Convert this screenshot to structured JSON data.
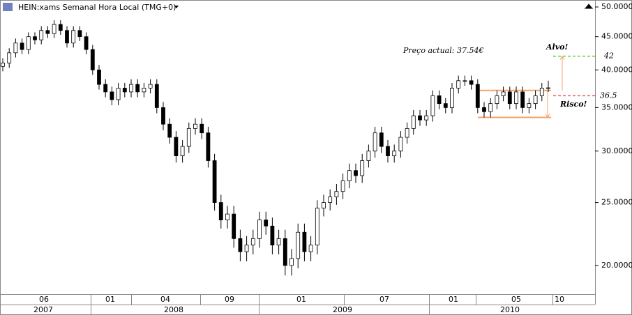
{
  "chart_data": {
    "type": "candlestick",
    "title": "HEIN:xams Semanal Hora Local (TMG+0)",
    "log_scale": true,
    "ylim": [
      18.07,
      51.25
    ],
    "yticks": [
      {
        "value": 20,
        "label": "20.0000"
      },
      {
        "value": 25,
        "label": "25.0000"
      },
      {
        "value": 30,
        "label": "30.0000"
      },
      {
        "value": 35,
        "label": "35.0000"
      },
      {
        "value": 40,
        "label": "40.0000"
      },
      {
        "value": 45,
        "label": "45.0000"
      },
      {
        "value": 50,
        "label": "50.0000"
      }
    ],
    "months": [
      "06",
      "01",
      "04",
      "09",
      "01",
      "07",
      "01",
      "05",
      "10"
    ],
    "years": [
      "2007",
      "2008",
      "2009",
      "2010"
    ],
    "up_color": "#ffffff",
    "down_color": "#000000",
    "candles": [
      [
        40.5,
        41.7,
        39.8,
        41
      ],
      [
        41,
        43.2,
        40.3,
        42.5
      ],
      [
        42.5,
        44.7,
        41.8,
        44
      ],
      [
        44,
        44.7,
        42.3,
        43
      ],
      [
        43,
        45.7,
        42.3,
        45
      ],
      [
        45,
        45.7,
        43.8,
        44.5
      ],
      [
        44.5,
        46.7,
        43.8,
        46
      ],
      [
        46,
        46.7,
        44.8,
        45.5
      ],
      [
        45.5,
        47.7,
        44.8,
        47
      ],
      [
        47,
        47.7,
        45.3,
        46
      ],
      [
        46,
        46.7,
        43.3,
        44
      ],
      [
        44,
        46.7,
        43.3,
        46
      ],
      [
        46,
        46.7,
        44.3,
        45
      ],
      [
        45,
        45.7,
        42.3,
        43
      ],
      [
        43,
        43.7,
        39.3,
        40
      ],
      [
        40,
        40.7,
        37.3,
        38
      ],
      [
        38,
        38.7,
        36.3,
        37
      ],
      [
        37,
        37.7,
        35.3,
        36
      ],
      [
        36,
        38.2,
        35.3,
        37.5
      ],
      [
        37.5,
        38.2,
        36.3,
        37
      ],
      [
        37,
        38.7,
        36.3,
        38
      ],
      [
        38,
        38.7,
        36.3,
        37
      ],
      [
        37,
        38.2,
        36.3,
        37.5
      ],
      [
        37.5,
        38.7,
        36.8,
        38
      ],
      [
        38,
        38.7,
        34.3,
        35
      ],
      [
        35,
        35.7,
        32.3,
        33
      ],
      [
        33,
        33.7,
        30.8,
        31.5
      ],
      [
        31.5,
        32.2,
        28.8,
        29.5
      ],
      [
        29.5,
        31.2,
        28.8,
        30.5
      ],
      [
        30.5,
        33.2,
        29.8,
        32.5
      ],
      [
        32.5,
        33.7,
        31.8,
        33
      ],
      [
        33,
        33.7,
        31.3,
        32
      ],
      [
        32,
        32.7,
        28.3,
        29
      ],
      [
        29,
        29.7,
        24.3,
        25
      ],
      [
        25,
        25.7,
        22.8,
        23.5
      ],
      [
        23.5,
        24.7,
        22.8,
        24
      ],
      [
        24,
        24.7,
        21.3,
        22
      ],
      [
        22,
        22.7,
        20.3,
        21
      ],
      [
        21,
        22.2,
        20.3,
        21.5
      ],
      [
        21.5,
        22.7,
        20.8,
        22
      ],
      [
        22,
        24.2,
        21.3,
        23.5
      ],
      [
        23.5,
        24.2,
        22.3,
        23
      ],
      [
        23,
        23.7,
        20.8,
        21.5
      ],
      [
        21.5,
        22.7,
        20.8,
        22
      ],
      [
        22,
        22.7,
        19.3,
        20
      ],
      [
        20,
        21.2,
        19.3,
        20.5
      ],
      [
        20.5,
        23.2,
        19.8,
        22.5
      ],
      [
        22.5,
        23.2,
        20.3,
        21
      ],
      [
        21,
        22.2,
        20.3,
        21.5
      ],
      [
        21.5,
        25.2,
        20.8,
        24.5
      ],
      [
        24.5,
        25.7,
        23.8,
        25
      ],
      [
        25,
        26.2,
        24.3,
        25.5
      ],
      [
        25.5,
        26.7,
        24.8,
        26
      ],
      [
        26,
        27.7,
        25.3,
        27
      ],
      [
        27,
        28.7,
        26.3,
        28
      ],
      [
        28,
        28.7,
        26.8,
        27.5
      ],
      [
        27.5,
        29.7,
        26.8,
        29
      ],
      [
        29,
        30.7,
        28.3,
        30
      ],
      [
        30,
        32.7,
        29.3,
        32
      ],
      [
        32,
        32.7,
        29.8,
        30.5
      ],
      [
        30.5,
        31.2,
        28.8,
        29.5
      ],
      [
        29.5,
        30.7,
        28.8,
        30
      ],
      [
        30,
        32.2,
        29.3,
        31.5
      ],
      [
        31.5,
        33.2,
        30.8,
        32.5
      ],
      [
        32.5,
        34.7,
        31.8,
        34
      ],
      [
        34,
        34.7,
        32.8,
        33.5
      ],
      [
        33.5,
        34.7,
        32.8,
        34
      ],
      [
        34,
        37.2,
        33.3,
        36.5
      ],
      [
        36.5,
        37.2,
        34.8,
        35.5
      ],
      [
        35.5,
        36.2,
        34.3,
        35
      ],
      [
        35,
        38.2,
        34.3,
        37.5
      ],
      [
        37.5,
        39.2,
        36.8,
        38.5
      ],
      [
        38.5,
        39.2,
        37.8,
        38.5
      ],
      [
        38.5,
        39.2,
        37.3,
        38
      ],
      [
        38,
        38.7,
        34.3,
        35
      ],
      [
        35,
        35.7,
        33.8,
        34.5
      ],
      [
        34.5,
        36.2,
        33.8,
        35.5
      ],
      [
        35.5,
        37.2,
        34.8,
        36.5
      ],
      [
        36.5,
        37.7,
        35.8,
        37
      ],
      [
        37,
        37.7,
        34.8,
        35.5
      ],
      [
        35.5,
        37.7,
        34.8,
        37
      ],
      [
        37,
        37.7,
        34.3,
        35
      ],
      [
        35,
        36.2,
        34.3,
        35.5
      ],
      [
        35.5,
        37.2,
        34.8,
        36.5
      ],
      [
        36.5,
        38.2,
        35.8,
        37.5
      ],
      [
        37.5,
        38.5,
        37,
        37.54
      ]
    ],
    "price_note": "Preço actual: 37.54€",
    "target": {
      "label": "Alvo!",
      "value": 42,
      "color": "#66cc33"
    },
    "stop": {
      "label": "Risco!",
      "value": 36.5,
      "color": "#ee5555"
    },
    "channel": {
      "upper": 37.2,
      "lower": 33.8,
      "color": "#f5a36b"
    }
  }
}
